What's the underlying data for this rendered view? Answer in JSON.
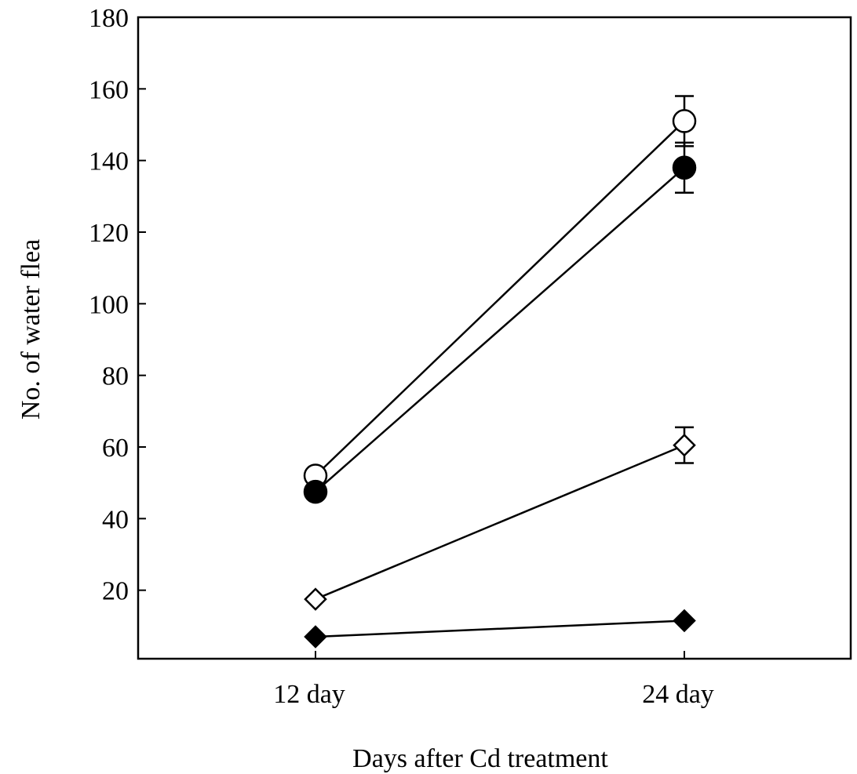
{
  "chart_data": {
    "type": "line",
    "xlabel": "Days after Cd treatment",
    "ylabel": "No. of water flea",
    "categories": [
      "12 day",
      "24 day"
    ],
    "yticks": [
      20,
      40,
      60,
      80,
      100,
      120,
      140,
      160,
      180
    ],
    "ylim": [
      0,
      180
    ],
    "grid": false,
    "series": [
      {
        "marker": "open-circle",
        "values": [
          52,
          151
        ],
        "errors": [
          null,
          7
        ]
      },
      {
        "marker": "filled-circle",
        "values": [
          47.5,
          138
        ],
        "errors": [
          null,
          7
        ]
      },
      {
        "marker": "open-diamond",
        "values": [
          17.5,
          60.5
        ],
        "errors": [
          null,
          5
        ]
      },
      {
        "marker": "filled-diamond",
        "values": [
          7,
          11.5
        ],
        "errors": [
          null,
          null
        ]
      }
    ]
  }
}
